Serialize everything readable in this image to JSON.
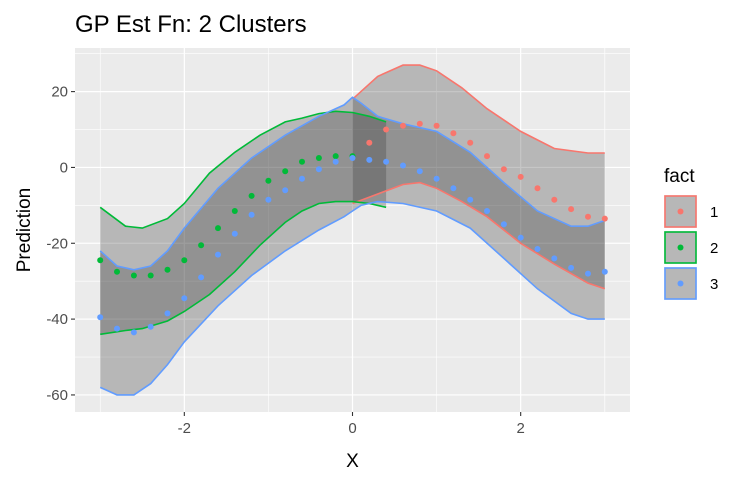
{
  "chart_data": {
    "type": "line",
    "title": "GP Est Fn: 2 Clusters",
    "xlabel": "X",
    "ylabel": "Prediction",
    "xlim": [
      -3.3,
      3.3
    ],
    "ylim": [
      -64.5,
      31.5
    ],
    "x_ticks": [
      -2,
      0,
      2
    ],
    "x_tick_labels": [
      "-2",
      "0",
      "2"
    ],
    "y_ticks": [
      20,
      0,
      -20,
      -40,
      -60
    ],
    "y_tick_labels": [
      "20",
      "0",
      "-20",
      "-40",
      "-60"
    ],
    "grid": true,
    "legend": {
      "title": "fact",
      "position": "right"
    },
    "series": [
      {
        "name": "1",
        "color": "#F8766D",
        "band_x": [
          0.0,
          0.3,
          0.6,
          0.8,
          1.0,
          1.3,
          1.6,
          2.0,
          2.4,
          2.8,
          3.0
        ],
        "upper": [
          18.0,
          24.0,
          27.0,
          27.0,
          25.5,
          21.0,
          15.5,
          9.5,
          5.0,
          3.8,
          3.8
        ],
        "lower": [
          -9.5,
          -7.0,
          -4.5,
          -4.0,
          -5.5,
          -9.0,
          -13.0,
          -20.0,
          -25.5,
          -30.5,
          -32.0
        ],
        "points_x": [
          0.2,
          0.4,
          0.6,
          0.8,
          1.0,
          1.2,
          1.4,
          1.6,
          1.8,
          2.0,
          2.2,
          2.4,
          2.6,
          2.8,
          3.0
        ],
        "points_y": [
          6.5,
          10.0,
          11.0,
          11.5,
          11.0,
          9.0,
          6.5,
          3.0,
          -0.5,
          -2.5,
          -5.5,
          -8.5,
          -11.0,
          -13.0,
          -13.5
        ]
      },
      {
        "name": "2",
        "color": "#00BA38",
        "band_x": [
          -3.0,
          -2.7,
          -2.5,
          -2.2,
          -2.0,
          -1.7,
          -1.4,
          -1.1,
          -0.8,
          -0.6,
          -0.4,
          -0.2,
          0.0,
          0.2,
          0.4
        ],
        "upper": [
          -10.5,
          -15.5,
          -16.0,
          -13.5,
          -9.5,
          -1.5,
          4.0,
          8.5,
          12.0,
          13.0,
          14.2,
          14.8,
          14.5,
          13.5,
          12.0
        ],
        "lower": [
          -44.0,
          -43.0,
          -42.5,
          -40.5,
          -38.0,
          -33.5,
          -27.5,
          -20.5,
          -14.5,
          -11.5,
          -9.5,
          -9.0,
          -9.0,
          -9.5,
          -10.5
        ],
        "points_x": [
          -3.0,
          -2.8,
          -2.6,
          -2.4,
          -2.2,
          -2.0,
          -1.8,
          -1.6,
          -1.4,
          -1.2,
          -1.0,
          -0.8,
          -0.6,
          -0.4,
          -0.2,
          0.0
        ],
        "points_y": [
          -24.5,
          -27.5,
          -28.5,
          -28.5,
          -27.0,
          -24.5,
          -20.5,
          -16.0,
          -11.5,
          -7.5,
          -3.5,
          -1.0,
          1.5,
          2.5,
          3.0,
          3.0
        ]
      },
      {
        "name": "3",
        "color": "#619CFF",
        "band_x": [
          -3.0,
          -2.8,
          -2.6,
          -2.4,
          -2.2,
          -2.0,
          -1.6,
          -1.2,
          -0.8,
          -0.4,
          -0.1,
          0.0,
          0.1,
          0.3,
          0.6,
          1.0,
          1.4,
          1.8,
          2.2,
          2.6,
          2.8,
          3.0
        ],
        "upper": [
          -22.0,
          -26.0,
          -27.0,
          -26.0,
          -22.0,
          -16.0,
          -5.5,
          2.5,
          8.5,
          13.5,
          16.5,
          18.5,
          17.0,
          13.5,
          11.5,
          9.5,
          4.0,
          -4.0,
          -11.5,
          -15.5,
          -15.5,
          -14.0
        ],
        "lower": [
          -58.0,
          -60.0,
          -60.0,
          -57.0,
          -52.0,
          -46.0,
          -36.5,
          -28.5,
          -22.0,
          -16.5,
          -13.0,
          -11.5,
          -10.0,
          -9.0,
          -9.5,
          -11.5,
          -16.0,
          -24.0,
          -32.0,
          -38.5,
          -40.0,
          -40.0
        ],
        "points_x": [
          -3.0,
          -2.8,
          -2.6,
          -2.4,
          -2.2,
          -2.0,
          -1.8,
          -1.6,
          -1.4,
          -1.2,
          -1.0,
          -0.8,
          -0.6,
          -0.4,
          -0.2,
          0.0,
          0.2,
          0.4,
          0.6,
          0.8,
          1.0,
          1.2,
          1.4,
          1.6,
          1.8,
          2.0,
          2.2,
          2.4,
          2.6,
          2.8,
          3.0
        ],
        "points_y": [
          -39.5,
          -42.5,
          -43.5,
          -42.0,
          -38.5,
          -34.5,
          -29.0,
          -23.0,
          -17.5,
          -12.5,
          -8.5,
          -6.0,
          -3.0,
          -0.5,
          1.5,
          2.5,
          2.0,
          1.5,
          0.5,
          -1.0,
          -3.0,
          -5.5,
          -8.5,
          -11.5,
          -15.0,
          -18.5,
          -21.5,
          -24.0,
          -26.5,
          -28.0,
          -27.5
        ]
      }
    ]
  }
}
